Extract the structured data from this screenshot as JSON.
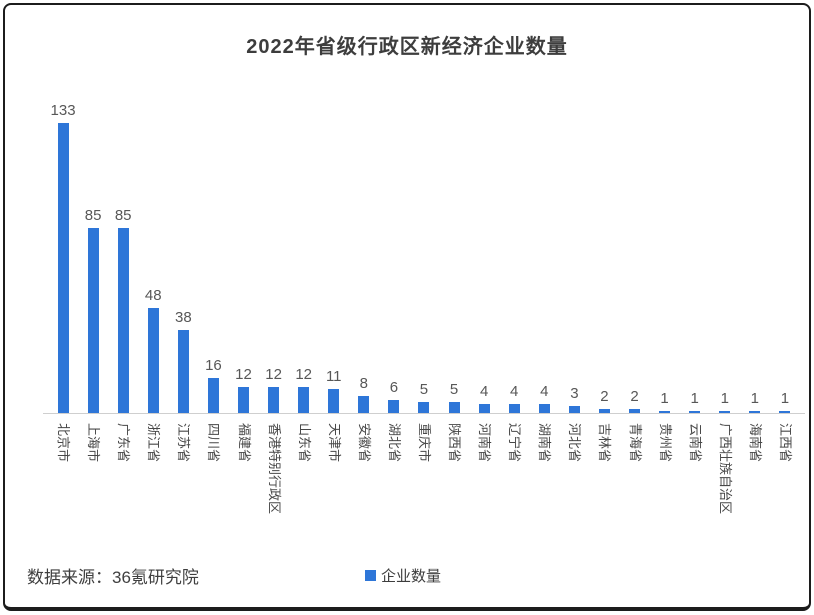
{
  "title": "2022年省级行政区新经济企业数量",
  "footer": {
    "source": "数据来源：36氪研究院"
  },
  "legend": {
    "label": "企业数量"
  },
  "colors": {
    "bar": "#2E76D8",
    "axis_line": "#cfcfcf"
  },
  "chart_data": {
    "type": "bar",
    "title": "2022年省级行政区新经济企业数量",
    "categories": [
      "北京市",
      "上海市",
      "广东省",
      "浙江省",
      "江苏省",
      "四川省",
      "福建省",
      "香港特别行政区",
      "山东省",
      "天津市",
      "安徽省",
      "湖北省",
      "重庆市",
      "陕西省",
      "河南省",
      "辽宁省",
      "湖南省",
      "河北省",
      "吉林省",
      "青海省",
      "贵州省",
      "云南省",
      "广西壮族自治区",
      "海南省",
      "江西省"
    ],
    "values": [
      133,
      85,
      85,
      48,
      38,
      16,
      12,
      12,
      12,
      11,
      8,
      6,
      5,
      5,
      4,
      4,
      4,
      3,
      2,
      2,
      1,
      1,
      1,
      1,
      1
    ],
    "series": [
      {
        "name": "企业数量",
        "values": [
          133,
          85,
          85,
          48,
          38,
          16,
          12,
          12,
          12,
          11,
          8,
          6,
          5,
          5,
          4,
          4,
          4,
          3,
          2,
          2,
          1,
          1,
          1,
          1,
          1
        ]
      }
    ],
    "xlabel": "",
    "ylabel": "",
    "ylim": [
      0,
      140
    ],
    "grid": false,
    "data_labels": true,
    "legend_position": "bottom",
    "x_tick_rotation": 90
  }
}
